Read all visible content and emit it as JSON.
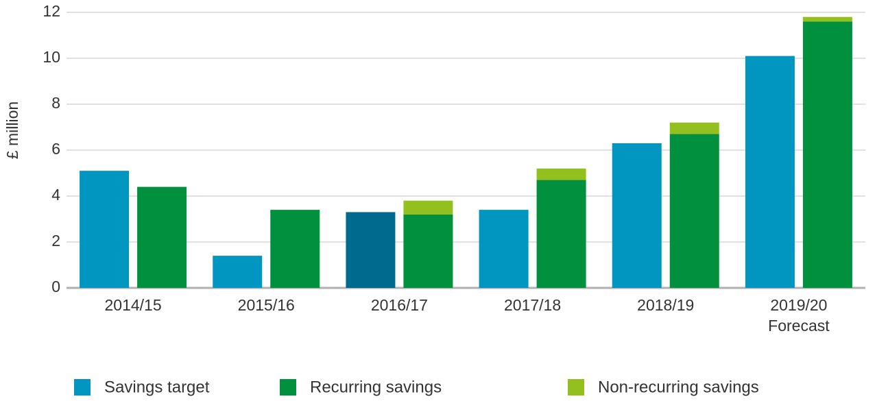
{
  "chart_data": {
    "type": "bar",
    "y_label": "£ million",
    "categories": [
      "2014/15",
      "2015/16",
      "2016/17",
      "2017/18",
      "2018/19",
      "2019/20\nForecast"
    ],
    "series": [
      {
        "name": "Savings target",
        "color": "#0096c0",
        "colors": [
          "#0096c0",
          "#0096c0",
          "#006a8e",
          "#0096c0",
          "#0096c0",
          "#0096c0"
        ],
        "slot": 0,
        "values": [
          5.1,
          1.4,
          3.3,
          3.4,
          6.3,
          10.1
        ]
      },
      {
        "name": "Recurring savings",
        "color": "#00903e",
        "slot": 1,
        "values": [
          4.4,
          3.4,
          3.2,
          4.7,
          6.7,
          11.6
        ]
      },
      {
        "name": "Non-recurring savings",
        "color": "#93c01f",
        "slot": 1,
        "values": [
          0,
          0,
          0.6,
          0.5,
          0.5,
          0.2
        ]
      }
    ],
    "ylim": [
      0,
      12
    ],
    "yticks": [
      0,
      2,
      4,
      6,
      8,
      10,
      12
    ],
    "grid": true
  }
}
